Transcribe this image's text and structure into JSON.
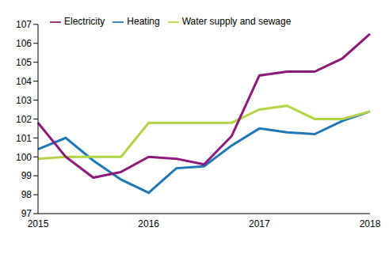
{
  "chart_data": {
    "type": "line",
    "categories": [
      "2015",
      null,
      null,
      null,
      "2016",
      null,
      null,
      null,
      "2017",
      null,
      null,
      null,
      "2018"
    ],
    "series": [
      {
        "name": "Heating",
        "color": "#1f78b4",
        "values": [
          100.4,
          101.0,
          99.8,
          98.8,
          98.1,
          99.4,
          99.5,
          100.6,
          101.5,
          101.3,
          101.2,
          101.9,
          102.4
        ]
      },
      {
        "name": "Water supply and sewage",
        "color": "#b5d445",
        "values": [
          99.9,
          100.0,
          100.0,
          100.0,
          101.8,
          101.8,
          101.8,
          101.8,
          102.5,
          102.7,
          102.0,
          102.0,
          102.4
        ]
      },
      {
        "name": "Electricity",
        "color": "#8b1a7a",
        "values": [
          101.8,
          100.0,
          98.9,
          99.2,
          100.0,
          99.9,
          99.6,
          101.1,
          104.3,
          104.5,
          104.5,
          105.2,
          106.5
        ]
      }
    ],
    "ylim": [
      97,
      107
    ],
    "yticks": [
      97,
      98,
      99,
      100,
      101,
      102,
      103,
      104,
      105,
      106,
      107
    ],
    "grid": false,
    "legend": "top"
  }
}
